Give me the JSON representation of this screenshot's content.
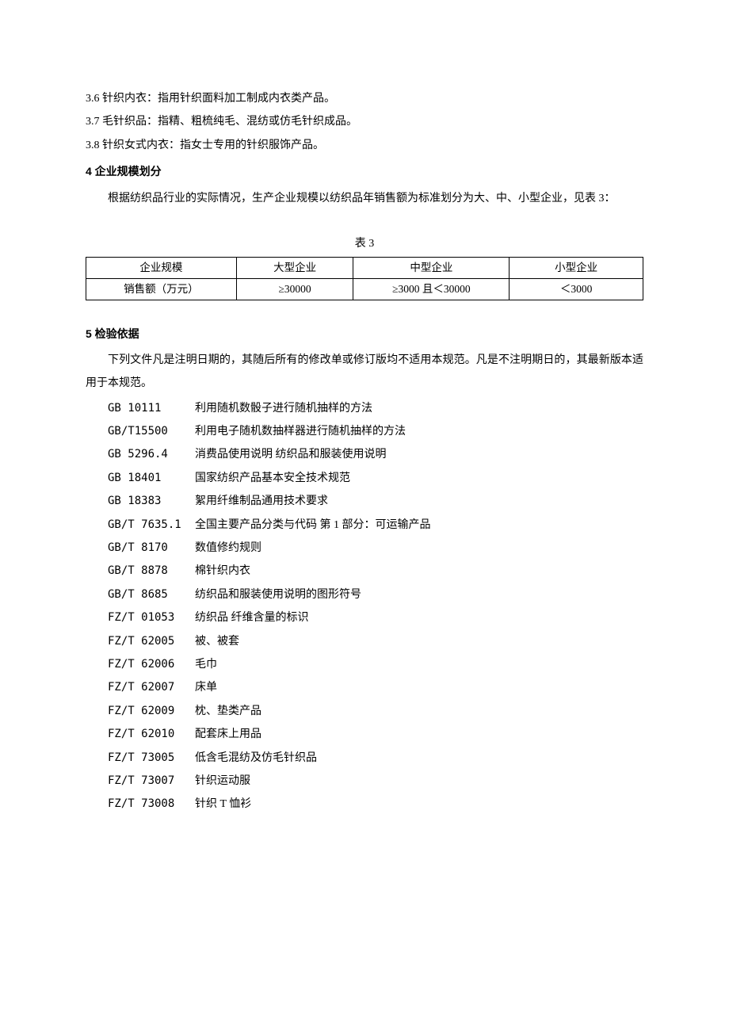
{
  "definitions": [
    {
      "num": "3.6",
      "term": "针织内衣",
      "text": "：指用针织面料加工制成内衣类产品。"
    },
    {
      "num": "3.7",
      "term": "毛针织品",
      "text": "：指精、粗梳纯毛、混纺或仿毛针织成品。"
    },
    {
      "num": "3.8",
      "term": "针织女式内衣",
      "text": "：指女士专用的针织服饰产品。"
    }
  ],
  "section4": {
    "heading": "4 企业规模划分",
    "body": "根据纺织品行业的实际情况，生产企业规模以纺织品年销售额为标准划分为大、中、小型企业，见表 3：",
    "table": {
      "caption": "表 3",
      "rows": [
        [
          "企业规模",
          "大型企业",
          "中型企业",
          "小型企业"
        ],
        [
          "销售额（万元）",
          "≥30000",
          "≥3000 且＜30000",
          "＜3000"
        ]
      ]
    }
  },
  "section5": {
    "heading": "5 检验依据",
    "body": "下列文件凡是注明日期的，其随后所有的修改单或修订版均不适用本规范。凡是不注明期日的，其最新版本适用于本规范。",
    "refs": [
      {
        "code": "GB 10111",
        "title": "利用随机数骰子进行随机抽样的方法"
      },
      {
        "code": "GB/T15500",
        "title": "利用电子随机数抽样器进行随机抽样的方法"
      },
      {
        "code": "GB 5296.4",
        "title": "消费品使用说明 纺织品和服装使用说明"
      },
      {
        "code": "GB 18401",
        "title": "国家纺织产品基本安全技术规范"
      },
      {
        "code": "GB 18383",
        "title": "絮用纤维制品通用技术要求"
      },
      {
        "code": "GB/T 7635.1",
        "title": "全国主要产品分类与代码  第 1 部分：可运输产品"
      },
      {
        "code": "GB/T 8170",
        "title": "数值修约规则"
      },
      {
        "code": "GB/T 8878",
        "title": "棉针织内衣"
      },
      {
        "code": "GB/T 8685",
        "title": "纺织品和服装使用说明的图形符号"
      },
      {
        "code": "FZ/T 01053",
        "title": "纺织品 纤维含量的标识"
      },
      {
        "code": "FZ/T 62005",
        "title": "被、被套"
      },
      {
        "code": "FZ/T 62006",
        "title": "毛巾"
      },
      {
        "code": "FZ/T 62007",
        "title": "床单"
      },
      {
        "code": "FZ/T 62009",
        "title": "枕、垫类产品"
      },
      {
        "code": "FZ/T 62010",
        "title": "配套床上用品"
      },
      {
        "code": "FZ/T 73005",
        "title": "低含毛混纺及仿毛针织品"
      },
      {
        "code": "FZ/T 73007",
        "title": "针织运动服"
      },
      {
        "code": "FZ/T 73008",
        "title": "针织 T 恤衫"
      }
    ]
  }
}
